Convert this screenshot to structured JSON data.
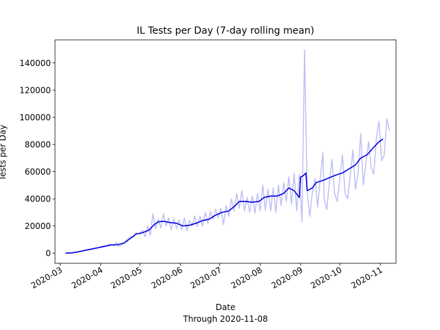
{
  "chart_data": {
    "type": "line",
    "title": "IL Tests per Day (7-day rolling mean)",
    "xlabel": "Date",
    "xlabel_sub": "Through 2020-11-08",
    "ylabel": "Tests per Day",
    "xlim": [
      "2020-02-26",
      "2020-11-13"
    ],
    "ylim": [
      -7500,
      157000
    ],
    "grid": false,
    "x_ticks": [
      "2020-03",
      "2020-04",
      "2020-05",
      "2020-06",
      "2020-07",
      "2020-08",
      "2020-09",
      "2020-10",
      "2020-11"
    ],
    "y_ticks": [
      0,
      20000,
      40000,
      60000,
      80000,
      100000,
      120000,
      140000
    ],
    "series": [
      {
        "name": "",
        "color": "#bfbff6",
        "points": [
          [
            "2020-03-05",
            0
          ],
          [
            "2020-03-10",
            300
          ],
          [
            "2020-03-14",
            800
          ],
          [
            "2020-03-18",
            1500
          ],
          [
            "2020-03-21",
            2500
          ],
          [
            "2020-03-24",
            3000
          ],
          [
            "2020-03-27",
            3500
          ],
          [
            "2020-03-30",
            4000
          ],
          [
            "2020-04-02",
            5000
          ],
          [
            "2020-04-05",
            5500
          ],
          [
            "2020-04-08",
            6500
          ],
          [
            "2020-04-11",
            5500
          ],
          [
            "2020-04-13",
            8000
          ],
          [
            "2020-04-15",
            5000
          ],
          [
            "2020-04-18",
            6500
          ],
          [
            "2020-04-21",
            10000
          ],
          [
            "2020-04-24",
            12000
          ],
          [
            "2020-04-26",
            11500
          ],
          [
            "2020-04-28",
            15000
          ],
          [
            "2020-05-01",
            14000
          ],
          [
            "2020-05-03",
            17000
          ],
          [
            "2020-05-05",
            12000
          ],
          [
            "2020-05-07",
            20000
          ],
          [
            "2020-05-09",
            13000
          ],
          [
            "2020-05-11",
            29000
          ],
          [
            "2020-05-13",
            18000
          ],
          [
            "2020-05-15",
            25000
          ],
          [
            "2020-05-17",
            18500
          ],
          [
            "2020-05-19",
            29000
          ],
          [
            "2020-05-21",
            20000
          ],
          [
            "2020-05-23",
            26000
          ],
          [
            "2020-05-25",
            17000
          ],
          [
            "2020-05-27",
            25500
          ],
          [
            "2020-05-29",
            18000
          ],
          [
            "2020-05-31",
            24500
          ],
          [
            "2020-06-02",
            17000
          ],
          [
            "2020-06-04",
            26000
          ],
          [
            "2020-06-06",
            16500
          ],
          [
            "2020-06-08",
            24000
          ],
          [
            "2020-06-10",
            20000
          ],
          [
            "2020-06-12",
            27500
          ],
          [
            "2020-06-14",
            19500
          ],
          [
            "2020-06-16",
            27000
          ],
          [
            "2020-06-18",
            20000
          ],
          [
            "2020-06-20",
            30000
          ],
          [
            "2020-06-22",
            22000
          ],
          [
            "2020-06-24",
            30500
          ],
          [
            "2020-06-26",
            25000
          ],
          [
            "2020-06-28",
            32500
          ],
          [
            "2020-06-30",
            26000
          ],
          [
            "2020-07-02",
            33000
          ],
          [
            "2020-07-04",
            21000
          ],
          [
            "2020-07-06",
            35000
          ],
          [
            "2020-07-08",
            27000
          ],
          [
            "2020-07-10",
            40000
          ],
          [
            "2020-07-12",
            31000
          ],
          [
            "2020-07-14",
            44000
          ],
          [
            "2020-07-16",
            33000
          ],
          [
            "2020-07-18",
            46000
          ],
          [
            "2020-07-20",
            31000
          ],
          [
            "2020-07-22",
            41000
          ],
          [
            "2020-07-24",
            30000
          ],
          [
            "2020-07-26",
            42000
          ],
          [
            "2020-07-28",
            29500
          ],
          [
            "2020-07-30",
            44000
          ],
          [
            "2020-08-01",
            31000
          ],
          [
            "2020-08-03",
            50000
          ],
          [
            "2020-08-05",
            31500
          ],
          [
            "2020-08-07",
            47000
          ],
          [
            "2020-08-09",
            31000
          ],
          [
            "2020-08-11",
            48000
          ],
          [
            "2020-08-13",
            30000
          ],
          [
            "2020-08-15",
            50000
          ],
          [
            "2020-08-17",
            35000
          ],
          [
            "2020-08-19",
            52000
          ],
          [
            "2020-08-21",
            38000
          ],
          [
            "2020-08-23",
            56000
          ],
          [
            "2020-08-25",
            36000
          ],
          [
            "2020-08-27",
            59000
          ],
          [
            "2020-08-29",
            31000
          ],
          [
            "2020-08-31",
            58000
          ],
          [
            "2020-09-02",
            23000
          ],
          [
            "2020-09-04",
            149500
          ],
          [
            "2020-09-06",
            45000
          ],
          [
            "2020-09-08",
            27000
          ],
          [
            "2020-09-10",
            45000
          ],
          [
            "2020-09-12",
            55000
          ],
          [
            "2020-09-14",
            34000
          ],
          [
            "2020-09-16",
            55000
          ],
          [
            "2020-09-18",
            74000
          ],
          [
            "2020-09-19",
            40000
          ],
          [
            "2020-09-21",
            32000
          ],
          [
            "2020-09-23",
            52000
          ],
          [
            "2020-09-25",
            69000
          ],
          [
            "2020-09-27",
            44000
          ],
          [
            "2020-09-29",
            38000
          ],
          [
            "2020-10-01",
            55000
          ],
          [
            "2020-10-03",
            72500
          ],
          [
            "2020-10-05",
            44000
          ],
          [
            "2020-10-07",
            40000
          ],
          [
            "2020-10-09",
            57000
          ],
          [
            "2020-10-11",
            76000
          ],
          [
            "2020-10-13",
            47000
          ],
          [
            "2020-10-15",
            59000
          ],
          [
            "2020-10-17",
            88000
          ],
          [
            "2020-10-19",
            50000
          ],
          [
            "2020-10-21",
            67000
          ],
          [
            "2020-10-23",
            82000
          ],
          [
            "2020-10-25",
            63000
          ],
          [
            "2020-10-27",
            58000
          ],
          [
            "2020-10-29",
            85000
          ],
          [
            "2020-10-31",
            97000
          ],
          [
            "2020-11-02",
            68000
          ],
          [
            "2020-11-04",
            72000
          ],
          [
            "2020-11-06",
            99000
          ],
          [
            "2020-11-08",
            90000
          ]
        ]
      },
      {
        "name": "",
        "color": "#0000e6",
        "points": [
          [
            "2020-03-05",
            0
          ],
          [
            "2020-03-10",
            200
          ],
          [
            "2020-03-15",
            1000
          ],
          [
            "2020-03-20",
            2000
          ],
          [
            "2020-03-25",
            3000
          ],
          [
            "2020-03-30",
            4000
          ],
          [
            "2020-04-04",
            5000
          ],
          [
            "2020-04-09",
            6000
          ],
          [
            "2020-04-14",
            6200
          ],
          [
            "2020-04-19",
            7500
          ],
          [
            "2020-04-24",
            11000
          ],
          [
            "2020-04-28",
            14000
          ],
          [
            "2020-05-03",
            15000
          ],
          [
            "2020-05-08",
            17000
          ],
          [
            "2020-05-12",
            21000
          ],
          [
            "2020-05-15",
            23000
          ],
          [
            "2020-05-19",
            23500
          ],
          [
            "2020-05-24",
            22500
          ],
          [
            "2020-05-29",
            22000
          ],
          [
            "2020-06-03",
            20000
          ],
          [
            "2020-06-08",
            20500
          ],
          [
            "2020-06-13",
            22000
          ],
          [
            "2020-06-18",
            24000
          ],
          [
            "2020-06-23",
            25000
          ],
          [
            "2020-06-28",
            28000
          ],
          [
            "2020-07-03",
            30000
          ],
          [
            "2020-07-08",
            31000
          ],
          [
            "2020-07-13",
            35000
          ],
          [
            "2020-07-16",
            38000
          ],
          [
            "2020-07-21",
            38000
          ],
          [
            "2020-07-26",
            37500
          ],
          [
            "2020-07-31",
            38000
          ],
          [
            "2020-08-04",
            41000
          ],
          [
            "2020-08-09",
            42000
          ],
          [
            "2020-08-14",
            42000
          ],
          [
            "2020-08-19",
            44000
          ],
          [
            "2020-08-23",
            48000
          ],
          [
            "2020-08-27",
            46000
          ],
          [
            "2020-08-31",
            41000
          ],
          [
            "2020-09-01",
            56000
          ],
          [
            "2020-09-03",
            57000
          ],
          [
            "2020-09-05",
            59000
          ],
          [
            "2020-09-06",
            46000
          ],
          [
            "2020-09-10",
            48000
          ],
          [
            "2020-09-13",
            52000
          ],
          [
            "2020-09-18",
            53500
          ],
          [
            "2020-09-23",
            55500
          ],
          [
            "2020-09-28",
            57500
          ],
          [
            "2020-10-03",
            59000
          ],
          [
            "2020-10-08",
            62000
          ],
          [
            "2020-10-13",
            65000
          ],
          [
            "2020-10-17",
            70000
          ],
          [
            "2020-10-22",
            72500
          ],
          [
            "2020-10-27",
            78000
          ],
          [
            "2020-10-31",
            82000
          ],
          [
            "2020-11-03",
            84000
          ]
        ]
      }
    ]
  }
}
